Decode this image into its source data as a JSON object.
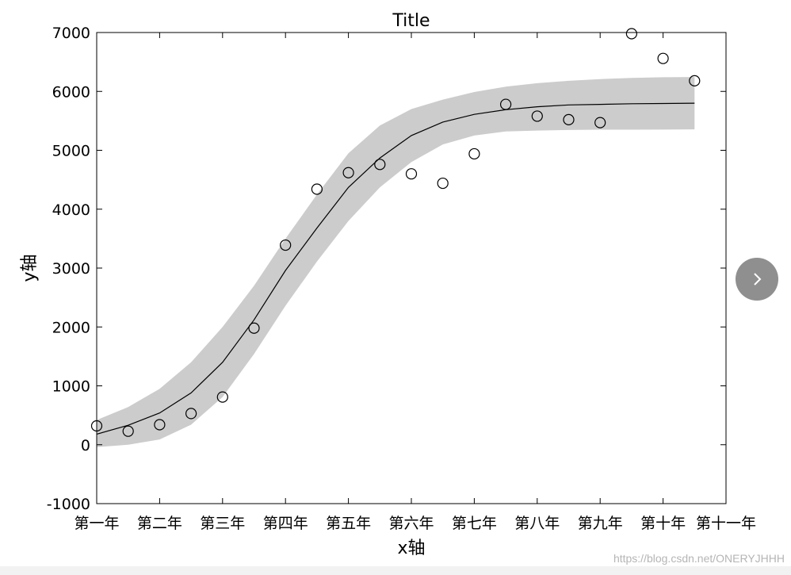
{
  "chart_data": {
    "type": "scatter",
    "title": "Title",
    "xlabel": "x轴",
    "ylabel": "y轴",
    "categories": [
      "第一年",
      "第二年",
      "第三年",
      "第四年",
      "第五年",
      "第六年",
      "第七年",
      "第八年",
      "第九年",
      "第十年",
      "第十一年"
    ],
    "ylim": [
      -1000,
      7000
    ],
    "yticks": [
      -1000,
      0,
      1000,
      2000,
      3000,
      4000,
      5000,
      6000,
      7000
    ],
    "grid": false,
    "x": [
      1,
      1.5,
      2,
      2.5,
      3,
      3.5,
      4,
      4.5,
      5,
      5.5,
      6,
      6.5,
      7,
      7.5,
      8,
      8.5,
      9,
      9.5,
      10,
      10.5
    ],
    "series": [
      {
        "kind": "points",
        "marker": "open-circle",
        "values": [
          320,
          230,
          340,
          530,
          810,
          1980,
          3390,
          4340,
          4620,
          4760,
          4600,
          4440,
          4940,
          5780,
          5580,
          5520,
          5470,
          6980,
          6560,
          6180
        ]
      },
      {
        "kind": "fit-line",
        "values": [
          180,
          330,
          540,
          880,
          1400,
          2120,
          2960,
          3680,
          4370,
          4870,
          5250,
          5480,
          5610,
          5690,
          5740,
          5770,
          5780,
          5790,
          5795,
          5800
        ]
      },
      {
        "kind": "confidence-band",
        "upper": [
          420,
          640,
          950,
          1400,
          2000,
          2700,
          3500,
          4250,
          4950,
          5420,
          5700,
          5860,
          5990,
          6080,
          6140,
          6180,
          6210,
          6230,
          6240,
          6245
        ],
        "lower": [
          -40,
          0,
          90,
          340,
          810,
          1540,
          2360,
          3110,
          3800,
          4370,
          4800,
          5100,
          5250,
          5320,
          5335,
          5345,
          5350,
          5350,
          5352,
          5355
        ]
      }
    ],
    "colors": {
      "band": "#cccccc",
      "line": "#000000",
      "marker": "#000000"
    }
  },
  "navigation": {
    "next_icon": "chevron-right-icon"
  },
  "watermark": "https://blog.csdn.net/ONERYJHHH"
}
